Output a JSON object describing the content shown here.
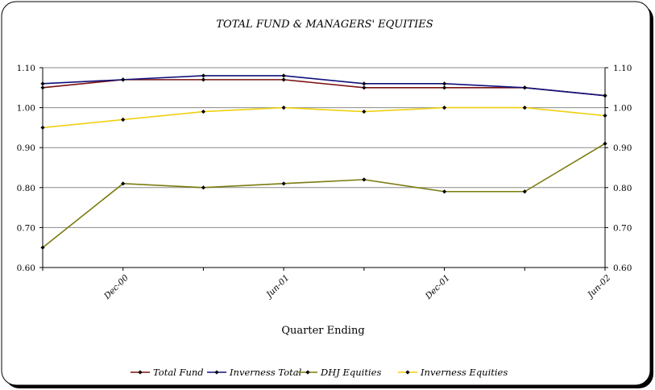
{
  "chart_data": {
    "type": "line",
    "title": "TOTAL FUND & MANAGERS' EQUITIES",
    "xlabel": "Quarter Ending",
    "ylabel": "",
    "ylim": [
      0.6,
      1.1
    ],
    "y_ticks": [
      "0.60",
      "0.70",
      "0.80",
      "0.90",
      "1.00",
      "1.10"
    ],
    "y_ticks_right": [
      "0.60",
      "0.70",
      "0.80",
      "0.90",
      "1.00",
      "1.10"
    ],
    "x": [
      "Sep-00",
      "Dec-00",
      "Mar-01",
      "Jun-01",
      "Sep-01",
      "Dec-01",
      "Mar-02",
      "Jun-02"
    ],
    "x_tick_labels": [
      "Dec-00",
      "Jun-01",
      "Dec-01",
      "Jun-02"
    ],
    "grid": true,
    "legend_position": "bottom",
    "series": [
      {
        "name": "Total Fund",
        "color": "#7b1010",
        "values": [
          1.05,
          1.07,
          1.07,
          1.07,
          1.05,
          1.05,
          1.05,
          1.03
        ]
      },
      {
        "name": "Inverness Total",
        "color": "#10107b",
        "values": [
          1.06,
          1.07,
          1.08,
          1.08,
          1.06,
          1.06,
          1.05,
          1.03
        ]
      },
      {
        "name": "DHJ Equities",
        "color": "#7b7b10",
        "values": [
          0.65,
          0.81,
          0.8,
          0.81,
          0.82,
          0.79,
          0.79,
          0.91
        ]
      },
      {
        "name": "Inverness Equities",
        "color": "#f0d010",
        "values": [
          0.95,
          0.97,
          0.99,
          1.0,
          0.99,
          1.0,
          1.0,
          0.98
        ]
      }
    ]
  }
}
